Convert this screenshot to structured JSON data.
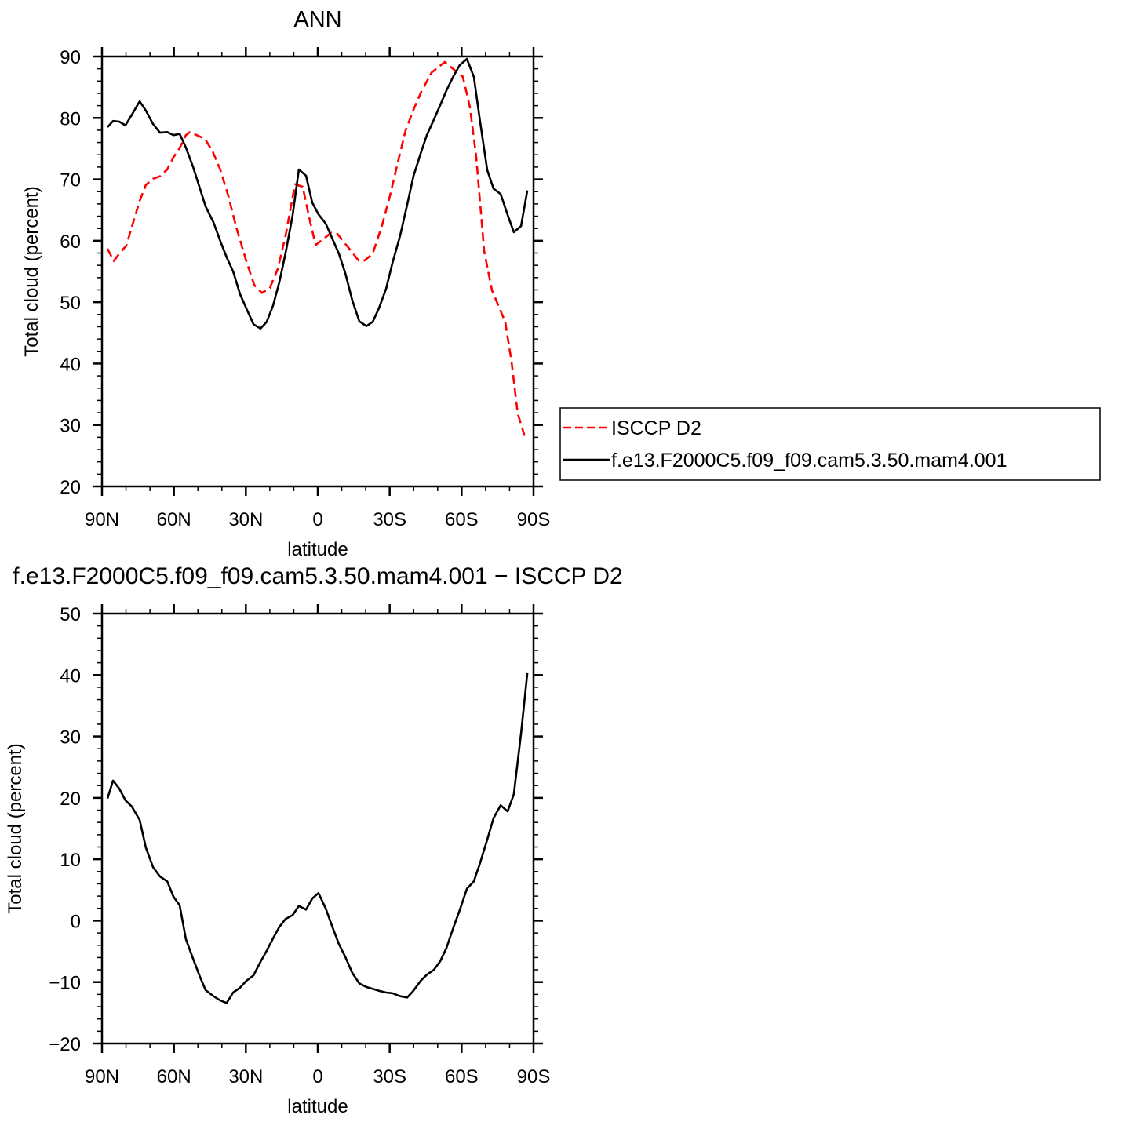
{
  "chart_data": [
    {
      "type": "line",
      "title": "ANN",
      "xlabel": "latitude",
      "ylabel": "Total cloud (percent)",
      "xlim": [
        90,
        -90
      ],
      "ylim": [
        20,
        90
      ],
      "xticks": [
        90,
        60,
        30,
        0,
        -30,
        -60,
        -90
      ],
      "xtick_labels": [
        "90N",
        "60N",
        "30N",
        "0",
        "30S",
        "60S",
        "90S"
      ],
      "yticks": [
        20,
        30,
        40,
        50,
        60,
        70,
        80,
        90
      ],
      "ytick_labels": [
        "20",
        "30",
        "40",
        "50",
        "60",
        "70",
        "80",
        "90"
      ],
      "grid": false,
      "legend_placement": "right",
      "series": [
        {
          "name": "ISCCP D2",
          "color": "#ff0000",
          "dash": "dashed",
          "x": [
            87.7,
            85.1,
            82.8,
            79.9,
            77.6,
            74.3,
            71.7,
            68.7,
            65.8,
            62.8,
            60.2,
            57.6,
            55.0,
            53.3,
            47.1,
            43.8,
            40.6,
            37.3,
            34.0,
            29.8,
            26.5,
            23.3,
            20.0,
            16.7,
            13.4,
            9.5,
            6.3,
            3.6,
            0.9,
            -5.6,
            -8.2,
            -17.0,
            -19.6,
            -22.9,
            -26.8,
            -30.1,
            -33.4,
            -36.6,
            -39.9,
            -43.2,
            -47.5,
            -53.0,
            -57.3,
            -60.5,
            -63.5,
            -66.1,
            -69.4,
            -72.7,
            -78.2,
            -80.8,
            -83.4,
            -86.7
          ],
          "y": [
            58.7,
            56.7,
            57.9,
            59.2,
            62.2,
            66.5,
            69.1,
            70.1,
            70.5,
            71.6,
            73.6,
            75.1,
            77.2,
            77.7,
            76.6,
            74.5,
            71.5,
            67.3,
            62.2,
            56.7,
            52.8,
            51.5,
            52.3,
            55.4,
            60.9,
            69.2,
            68.8,
            63.8,
            59.3,
            61.3,
            61.1,
            56.8,
            56.8,
            57.9,
            62.5,
            67.3,
            72.8,
            77.9,
            81.3,
            84.3,
            87.4,
            89.1,
            87.7,
            86.7,
            81.7,
            73.6,
            58.3,
            51.9,
            46.8,
            40.4,
            31.9,
            27.7
          ]
        },
        {
          "name": "f.e13.F2000C5.f09_f09.cam5.3.50.mam4.001",
          "color": "#000000",
          "dash": "solid",
          "x": [
            87.7,
            85.4,
            82.8,
            80.2,
            77.6,
            74.3,
            71.7,
            68.7,
            65.8,
            62.8,
            60.2,
            57.6,
            55.0,
            52.0,
            49.4,
            46.8,
            43.5,
            40.6,
            38.0,
            35.3,
            32.4,
            29.8,
            26.8,
            23.9,
            21.3,
            18.7,
            16.0,
            13.4,
            10.5,
            7.9,
            4.9,
            2.3,
            -0.3,
            -3.3,
            -5.9,
            -8.8,
            -11.5,
            -14.4,
            -17.3,
            -20.3,
            -22.9,
            -25.5,
            -28.5,
            -31.1,
            -34.4,
            -37.3,
            -39.9,
            -42.9,
            -45.5,
            -48.4,
            -51.1,
            -53.7,
            -56.6,
            -59.2,
            -62.2,
            -65.1,
            -67.7,
            -70.7,
            -73.3,
            -76.3,
            -79.2,
            -81.8,
            -84.8,
            -87.4
          ],
          "y": [
            78.5,
            79.5,
            79.4,
            78.8,
            80.5,
            82.7,
            81.2,
            79.0,
            77.6,
            77.7,
            77.2,
            77.4,
            75.2,
            72.0,
            68.8,
            65.6,
            63.0,
            59.9,
            57.3,
            55.0,
            51.3,
            49.0,
            46.4,
            45.7,
            46.8,
            49.4,
            53.3,
            58.1,
            64.1,
            71.6,
            70.6,
            66.2,
            64.3,
            62.8,
            60.5,
            57.9,
            54.7,
            50.3,
            46.9,
            46.1,
            46.8,
            49.0,
            52.2,
            56.3,
            60.9,
            65.9,
            70.5,
            74.2,
            77.2,
            79.7,
            82.1,
            84.5,
            86.8,
            88.6,
            89.6,
            86.7,
            79.4,
            71.5,
            68.5,
            67.6,
            64.2,
            61.4,
            62.4,
            68.2
          ]
        }
      ]
    },
    {
      "type": "line",
      "title": "f.e13.F2000C5.f09_f09.cam5.3.50.mam4.001 − ISCCP D2",
      "xlabel": "latitude",
      "ylabel": "Total cloud (percent)",
      "xlim": [
        90,
        -90
      ],
      "ylim": [
        -20,
        50
      ],
      "xticks": [
        90,
        60,
        30,
        0,
        -30,
        -60,
        -90
      ],
      "xtick_labels": [
        "90N",
        "60N",
        "30N",
        "0",
        "30S",
        "60S",
        "90S"
      ],
      "yticks": [
        -20,
        -10,
        0,
        10,
        20,
        30,
        40,
        50
      ],
      "ytick_labels": [
        "−20",
        "−10",
        "0",
        "10",
        "20",
        "30",
        "40",
        "50"
      ],
      "grid": false,
      "series": [
        {
          "color": "#000000",
          "dash": "solid",
          "x": [
            87.7,
            85.4,
            82.8,
            80.2,
            77.6,
            74.3,
            71.7,
            68.7,
            65.8,
            62.8,
            60.2,
            57.6,
            55.0,
            52.0,
            49.4,
            46.8,
            43.5,
            40.6,
            38.0,
            35.3,
            32.4,
            29.8,
            26.8,
            23.9,
            21.3,
            18.7,
            16.0,
            13.4,
            10.5,
            7.9,
            4.9,
            2.3,
            -0.3,
            -3.3,
            -5.9,
            -8.8,
            -11.5,
            -14.4,
            -17.3,
            -20.3,
            -22.9,
            -25.5,
            -28.5,
            -31.1,
            -34.4,
            -37.3,
            -39.9,
            -42.9,
            -45.5,
            -48.4,
            -51.1,
            -53.7,
            -56.6,
            -59.2,
            -62.2,
            -65.1,
            -67.7,
            -70.7,
            -73.3,
            -76.3,
            -79.2,
            -81.8,
            -84.8,
            -87.4
          ],
          "y": [
            19.9,
            22.8,
            21.5,
            19.6,
            18.6,
            16.4,
            11.9,
            8.7,
            7.2,
            6.4,
            3.9,
            2.5,
            -3.0,
            -6.2,
            -8.9,
            -11.3,
            -12.3,
            -13.0,
            -13.4,
            -11.7,
            -10.9,
            -9.8,
            -8.9,
            -6.7,
            -4.9,
            -2.9,
            -1.0,
            0.3,
            0.9,
            2.4,
            1.8,
            3.6,
            4.5,
            2.0,
            -0.8,
            -3.8,
            -5.9,
            -8.5,
            -10.2,
            -10.8,
            -11.1,
            -11.4,
            -11.7,
            -11.8,
            -12.3,
            -12.5,
            -11.4,
            -9.8,
            -8.8,
            -8.0,
            -6.6,
            -4.4,
            -1.1,
            1.7,
            5.2,
            6.4,
            9.4,
            13.2,
            16.7,
            18.8,
            17.8,
            20.6,
            30.5,
            40.3
          ]
        }
      ]
    }
  ]
}
